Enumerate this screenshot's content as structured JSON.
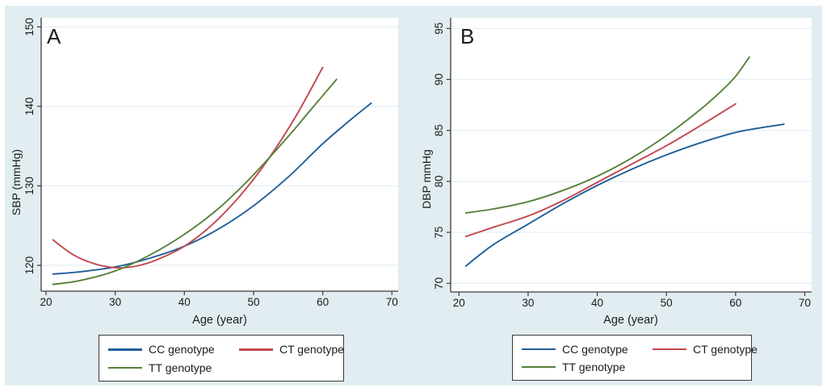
{
  "colors": {
    "figure_background": "#e1edf1",
    "plot_background": "#ffffff",
    "gridline": "#e7f1f6",
    "axis": "#3a3a3a",
    "text": "#1a1a1a",
    "cc_blue": "#1f5f9b",
    "ct_red": "#c2464f",
    "tt_green": "#568138"
  },
  "chart_data": [
    {
      "type": "line",
      "panel_label": "A",
      "title": "",
      "xlabel": "Age (year)",
      "ylabel": "SBP (mmHg)",
      "xticks": [
        20,
        30,
        40,
        50,
        60,
        70
      ],
      "yticks": [
        120,
        130,
        140,
        150
      ],
      "xlim": [
        19.3,
        70.9
      ],
      "ylim": [
        116.75,
        151.15
      ],
      "grid": "horizontal-only",
      "legend_position": "below-plot-boxed",
      "series": [
        {
          "name": "CC genotype",
          "color": "#1f5f9b",
          "x": [
            21,
            25,
            30,
            35,
            40,
            45,
            50,
            55,
            60,
            64,
            67
          ],
          "y": [
            118.9,
            119.2,
            119.8,
            120.9,
            122.4,
            124.6,
            127.5,
            131.1,
            135.3,
            138.3,
            140.4
          ]
        },
        {
          "name": "CT genotype",
          "color": "#c2464f",
          "x": [
            21,
            24,
            27,
            30,
            33,
            36,
            40,
            44,
            48,
            52,
            56,
            60
          ],
          "y": [
            123.2,
            121.3,
            120.2,
            119.7,
            119.9,
            120.7,
            122.4,
            125.1,
            128.7,
            133.2,
            138.6,
            144.9
          ]
        },
        {
          "name": "TT genotype",
          "color": "#568138",
          "x": [
            21,
            25,
            30,
            35,
            40,
            45,
            50,
            55,
            58,
            62
          ],
          "y": [
            117.6,
            118.1,
            119.3,
            121.3,
            123.9,
            127.2,
            131.4,
            136.2,
            139.3,
            143.4
          ]
        }
      ]
    },
    {
      "type": "line",
      "panel_label": "B",
      "title": "",
      "xlabel": "Age (year)",
      "ylabel": "DBP mmHg",
      "xticks": [
        20,
        30,
        40,
        50,
        60,
        70
      ],
      "yticks": [
        70,
        75,
        80,
        85,
        90,
        95
      ],
      "xlim": [
        18.8,
        71.0
      ],
      "ylim": [
        69.15,
        96.05
      ],
      "grid": "horizontal-only",
      "legend_position": "below-plot-boxed",
      "series": [
        {
          "name": "CC genotype",
          "color": "#1f5f9b",
          "x": [
            21,
            25,
            30,
            35,
            40,
            45,
            50,
            55,
            60,
            64,
            67
          ],
          "y": [
            71.7,
            73.8,
            75.8,
            77.8,
            79.6,
            81.2,
            82.6,
            83.8,
            84.8,
            85.3,
            85.6
          ]
        },
        {
          "name": "CT genotype",
          "color": "#c2464f",
          "x": [
            21,
            25,
            30,
            35,
            40,
            45,
            50,
            55,
            60
          ],
          "y": [
            74.6,
            75.5,
            76.6,
            78.1,
            79.9,
            81.7,
            83.5,
            85.5,
            87.6
          ]
        },
        {
          "name": "TT genotype",
          "color": "#568138",
          "x": [
            21,
            25,
            30,
            35,
            40,
            45,
            50,
            55,
            58,
            60,
            62
          ],
          "y": [
            76.9,
            77.3,
            78.0,
            79.1,
            80.5,
            82.3,
            84.5,
            87.1,
            88.9,
            90.3,
            92.2
          ]
        }
      ]
    }
  ]
}
